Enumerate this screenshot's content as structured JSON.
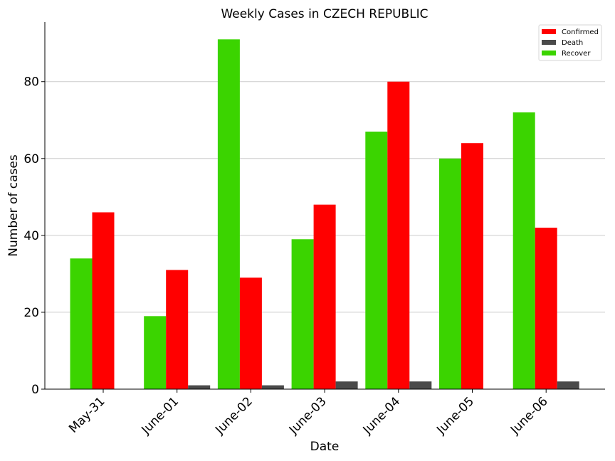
{
  "chart_data": {
    "type": "bar",
    "title": "Weekly Cases in CZECH REPUBLIC",
    "xlabel": "Date",
    "ylabel": "Number of cases",
    "categories": [
      "May-31",
      "June-01",
      "June-02",
      "June-03",
      "June-04",
      "June-05",
      "June-06"
    ],
    "series": [
      {
        "name": "Recover",
        "color": "#3bd400",
        "values": [
          34,
          19,
          91,
          39,
          67,
          60,
          72
        ]
      },
      {
        "name": "Confirmed",
        "color": "#ff0000",
        "values": [
          46,
          31,
          29,
          48,
          80,
          64,
          42
        ]
      },
      {
        "name": "Death",
        "color": "#4a4a4a",
        "values": [
          0,
          1,
          1,
          2,
          2,
          0,
          2
        ]
      }
    ],
    "legend_order": [
      "Confirmed",
      "Death",
      "Recover"
    ],
    "ylim": [
      0,
      95.5
    ],
    "yticks": [
      0,
      20,
      40,
      60,
      80
    ],
    "grid": "horizontal",
    "legend_position": "top-right"
  }
}
